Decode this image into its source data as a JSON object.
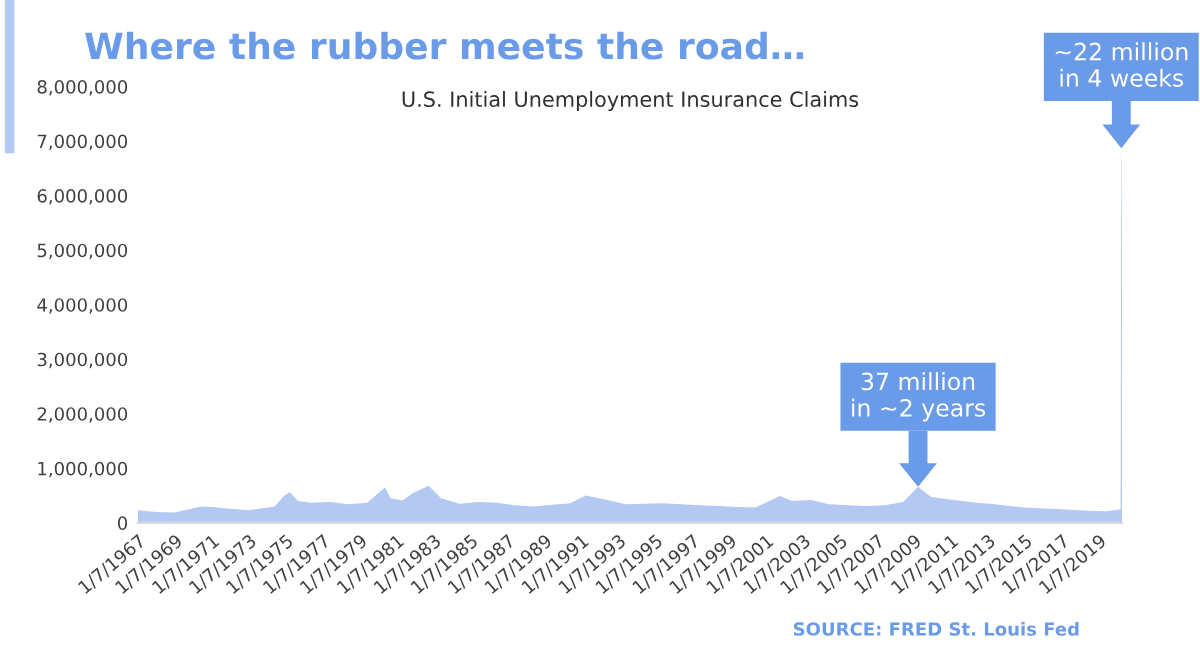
{
  "chart_data": {
    "type": "area",
    "title": "Where the rubber meets the road…",
    "subtitle": "U.S. Initial Unemployment Insurance Claims",
    "x": [
      "1967-01-07",
      "1968-01-06",
      "1969-01-04",
      "1970-06-06",
      "1971-01-02",
      "1972-01-01",
      "1973-01-06",
      "1974-06-01",
      "1974-12-07",
      "1975-03-29",
      "1975-09-06",
      "1976-06-05",
      "1977-06-04",
      "1978-06-03",
      "1979-06-02",
      "1980-05-24",
      "1980-09-06",
      "1981-05-02",
      "1981-12-05",
      "1982-10-02",
      "1983-06-04",
      "1984-06-02",
      "1985-06-01",
      "1986-06-07",
      "1987-06-06",
      "1988-06-04",
      "1989-06-03",
      "1990-06-02",
      "1991-03-30",
      "1992-06-06",
      "1993-06-05",
      "1994-06-04",
      "1995-06-03",
      "1996-06-01",
      "1997-06-07",
      "1998-06-06",
      "1999-06-05",
      "2000-06-03",
      "2001-10-06",
      "2002-06-01",
      "2003-06-07",
      "2004-06-05",
      "2005-06-04",
      "2006-06-03",
      "2007-06-02",
      "2008-06-07",
      "2009-03-28",
      "2009-12-05",
      "2010-06-05",
      "2011-06-04",
      "2012-06-02",
      "2013-06-01",
      "2014-06-07",
      "2015-06-06",
      "2016-06-04",
      "2017-06-03",
      "2018-06-02",
      "2019-06-01",
      "2020-03-14",
      "2020-03-21",
      "2020-03-28",
      "2020-04-04",
      "2020-04-11"
    ],
    "series": [
      {
        "color": "#b4c9f2",
        "values": [
          230000,
          200000,
          190000,
          300000,
          290000,
          260000,
          230000,
          300000,
          500000,
          560000,
          400000,
          370000,
          380000,
          340000,
          370000,
          650000,
          450000,
          410000,
          550000,
          680000,
          450000,
          350000,
          380000,
          370000,
          320000,
          300000,
          330000,
          360000,
          500000,
          420000,
          340000,
          350000,
          360000,
          340000,
          320000,
          310000,
          290000,
          280000,
          490000,
          400000,
          420000,
          340000,
          320000,
          310000,
          320000,
          380000,
          660000,
          480000,
          450000,
          410000,
          370000,
          340000,
          300000,
          270000,
          260000,
          240000,
          220000,
          210000,
          250000,
          3310000,
          6870000,
          6620000,
          5240000
        ]
      }
    ],
    "xlim": [
      "1967-01-07",
      "2020-04-11"
    ],
    "xticks": [
      {
        "value": "1967-01-07",
        "label": "1/7/1967"
      },
      {
        "value": "1969-01-07",
        "label": "1/7/1969"
      },
      {
        "value": "1971-01-07",
        "label": "1/7/1971"
      },
      {
        "value": "1973-01-07",
        "label": "1/7/1973"
      },
      {
        "value": "1975-01-07",
        "label": "1/7/1975"
      },
      {
        "value": "1977-01-07",
        "label": "1/7/1977"
      },
      {
        "value": "1979-01-07",
        "label": "1/7/1979"
      },
      {
        "value": "1981-01-07",
        "label": "1/7/1981"
      },
      {
        "value": "1983-01-07",
        "label": "1/7/1983"
      },
      {
        "value": "1985-01-07",
        "label": "1/7/1985"
      },
      {
        "value": "1987-01-07",
        "label": "1/7/1987"
      },
      {
        "value": "1989-01-07",
        "label": "1/7/1989"
      },
      {
        "value": "1991-01-07",
        "label": "1/7/1991"
      },
      {
        "value": "1993-01-07",
        "label": "1/7/1993"
      },
      {
        "value": "1995-01-07",
        "label": "1/7/1995"
      },
      {
        "value": "1997-01-07",
        "label": "1/7/1997"
      },
      {
        "value": "1999-01-07",
        "label": "1/7/1999"
      },
      {
        "value": "2001-01-07",
        "label": "1/7/2001"
      },
      {
        "value": "2003-01-07",
        "label": "1/7/2003"
      },
      {
        "value": "2005-01-07",
        "label": "1/7/2005"
      },
      {
        "value": "2007-01-07",
        "label": "1/7/2007"
      },
      {
        "value": "2009-01-07",
        "label": "1/7/2009"
      },
      {
        "value": "2011-01-07",
        "label": "1/7/2011"
      },
      {
        "value": "2013-01-07",
        "label": "1/7/2013"
      },
      {
        "value": "2015-01-07",
        "label": "1/7/2015"
      },
      {
        "value": "2017-01-07",
        "label": "1/7/2017"
      },
      {
        "value": "2019-01-07",
        "label": "1/7/2019"
      }
    ],
    "ylim": [
      0,
      8000000
    ],
    "yticks": [
      0,
      {
        "value": 1000000,
        "label": "1,000,000"
      },
      {
        "value": 2000000,
        "label": "2,000,000"
      },
      {
        "value": 3000000,
        "label": "3,000,000"
      },
      {
        "value": 4000000,
        "label": "4,000,000"
      },
      {
        "value": 5000000,
        "label": "5,000,000"
      },
      {
        "value": 6000000,
        "label": "6,000,000"
      },
      {
        "value": 7000000,
        "label": "7,000,000"
      },
      {
        "value": 8000000,
        "label": "8,000,000"
      }
    ],
    "annotations": [
      {
        "text": "37 million\nin ~2 years",
        "x": "2009-03-28",
        "y": 660000
      },
      {
        "text": "~22 million\nin 4 weeks",
        "x": "2020-03-28",
        "y": 6870000
      },
      "SOURCE: FRED St. Louis Fed"
    ],
    "grid": false
  }
}
